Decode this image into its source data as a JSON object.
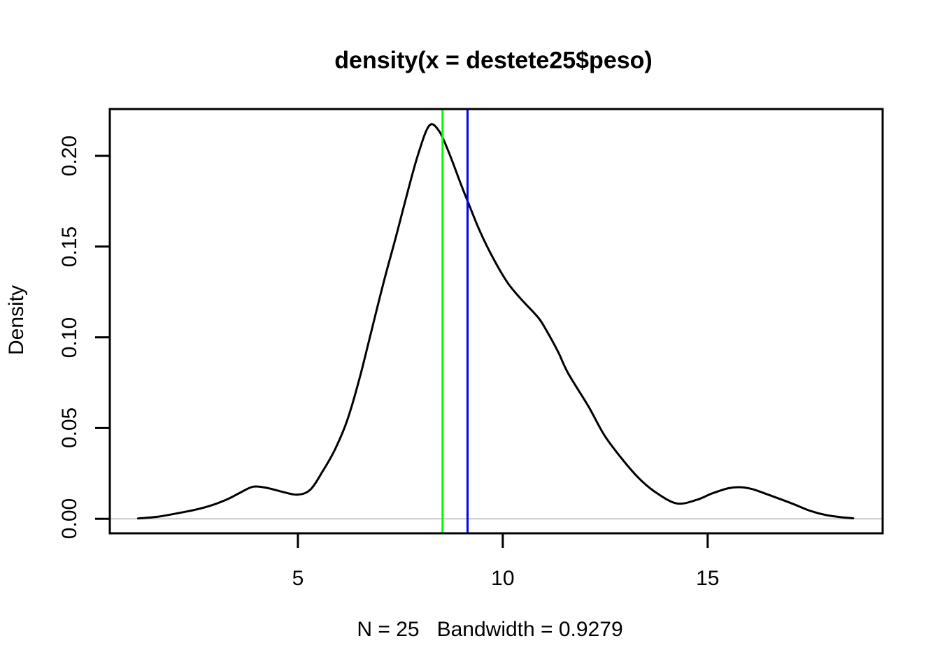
{
  "page": {
    "background": "#FFFFFF"
  },
  "chart_data": {
    "type": "line",
    "title": "density(x = destete25$peso)",
    "xlabel": "N = 25   Bandwidth = 0.9279",
    "ylabel": "Density",
    "n": 25,
    "bandwidth": 0.9279,
    "xlim": [
      0.41,
      19.27
    ],
    "ylim": [
      -0.008,
      0.2258
    ],
    "x_tick_values": [
      5,
      10,
      15
    ],
    "x_tick_labels": [
      "5",
      "10",
      "15"
    ],
    "y_tick_values": [
      0,
      0.05,
      0.1,
      0.15,
      0.2
    ],
    "y_tick_labels": [
      "0.00",
      "0.05",
      "0.10",
      "0.15",
      "0.20"
    ],
    "grid": false,
    "legend": null,
    "box_color": "#000000",
    "zero_line": {
      "y": 0,
      "color": "#C9C9C9"
    },
    "reference_lines": [
      {
        "name": "reference-line-green",
        "x": 8.53,
        "color": "#00FF00"
      },
      {
        "name": "reference-line-blue",
        "x": 9.14,
        "color": "#0000FF"
      }
    ],
    "series": [
      {
        "name": "density",
        "color": "#000000",
        "x": [
          1.1,
          1.6,
          2.1,
          2.5,
          2.9,
          3.3,
          3.6,
          3.91,
          4.25,
          4.6,
          4.98,
          5.3,
          5.6,
          5.9,
          6.2,
          6.5,
          6.8,
          7.1,
          7.4,
          7.7,
          7.95,
          8.21,
          8.45,
          8.7,
          8.95,
          9.16,
          9.45,
          9.78,
          10.12,
          10.45,
          10.86,
          11.06,
          11.35,
          11.6,
          12.09,
          12.48,
          12.91,
          13.31,
          13.71,
          14.24,
          14.73,
          15.1,
          15.5,
          15.81,
          16.1,
          16.5,
          17.05,
          17.5,
          17.9,
          18.3,
          18.55
        ],
        "y": [
          0.0002,
          0.0012,
          0.0032,
          0.005,
          0.0075,
          0.011,
          0.0145,
          0.0177,
          0.017,
          0.015,
          0.0133,
          0.016,
          0.026,
          0.038,
          0.054,
          0.077,
          0.104,
          0.131,
          0.156,
          0.182,
          0.202,
          0.2168,
          0.2135,
          0.201,
          0.186,
          0.174,
          0.158,
          0.143,
          0.13,
          0.121,
          0.111,
          0.104,
          0.092,
          0.08,
          0.062,
          0.046,
          0.033,
          0.0226,
          0.0149,
          0.0085,
          0.0104,
          0.0139,
          0.0168,
          0.0174,
          0.0163,
          0.0131,
          0.0085,
          0.0044,
          0.002,
          0.0008,
          0.0003
        ]
      }
    ]
  }
}
